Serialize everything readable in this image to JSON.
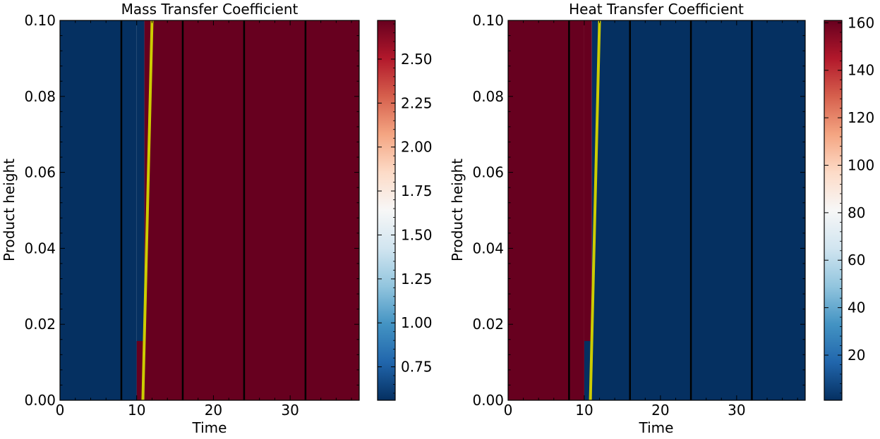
{
  "chart_data": [
    {
      "type": "heatmap",
      "title": "Mass Transfer Coefficient",
      "xlabel": "Time",
      "ylabel": "Product height",
      "xlim": [
        0,
        39
      ],
      "ylim": [
        0,
        0.1
      ],
      "x_ticks": [
        "0",
        "10",
        "20",
        "30"
      ],
      "y_ticks": [
        "0.00",
        "0.02",
        "0.04",
        "0.06",
        "0.08",
        "0.10"
      ],
      "colormap": "RdBu_r",
      "colorbar_range": [
        0.56,
        2.72
      ],
      "colorbar_ticks": [
        "0.75",
        "1.00",
        "1.25",
        "1.50",
        "1.75",
        "2.00",
        "2.25",
        "2.50"
      ],
      "regions": [
        {
          "x": [
            0,
            10
          ],
          "y": [
            0,
            0.1
          ],
          "value": 0.56
        },
        {
          "x": [
            10,
            11
          ],
          "y": [
            0,
            0.1
          ],
          "value": 0.56
        },
        {
          "x": [
            10,
            11
          ],
          "y": [
            0,
            0.0156
          ],
          "value": 2.72
        },
        {
          "x": [
            11,
            39
          ],
          "y": [
            0,
            0.1
          ],
          "value": 2.72
        }
      ],
      "vertical_lines": [
        8,
        16,
        24,
        32
      ],
      "front_line": {
        "x": [
          10.8,
          11.4,
          12.0
        ],
        "y": [
          0,
          0.05,
          0.1
        ],
        "color": "#cccc00"
      }
    },
    {
      "type": "heatmap",
      "title": "Heat Transfer Coefficient",
      "xlabel": "Time",
      "ylabel": "Product height",
      "xlim": [
        0,
        39
      ],
      "ylim": [
        0,
        0.1
      ],
      "x_ticks": [
        "0",
        "10",
        "20",
        "30"
      ],
      "y_ticks": [
        "0.00",
        "0.02",
        "0.04",
        "0.06",
        "0.08",
        "0.10"
      ],
      "colormap": "RdBu_r",
      "colorbar_range": [
        1,
        161
      ],
      "colorbar_ticks": [
        "20",
        "40",
        "60",
        "80",
        "100",
        "120",
        "140",
        "160"
      ],
      "regions": [
        {
          "x": [
            0,
            10
          ],
          "y": [
            0,
            0.1
          ],
          "value": 161
        },
        {
          "x": [
            10,
            11
          ],
          "y": [
            0,
            0.1
          ],
          "value": 161
        },
        {
          "x": [
            10,
            11
          ],
          "y": [
            0,
            0.0156
          ],
          "value": 1
        },
        {
          "x": [
            11,
            39
          ],
          "y": [
            0,
            0.1
          ],
          "value": 1
        }
      ],
      "vertical_lines": [
        8,
        16,
        24,
        32
      ],
      "front_line": {
        "x": [
          10.8,
          11.4,
          12.0
        ],
        "y": [
          0,
          0.05,
          0.1
        ],
        "color": "#cccc00"
      }
    }
  ]
}
